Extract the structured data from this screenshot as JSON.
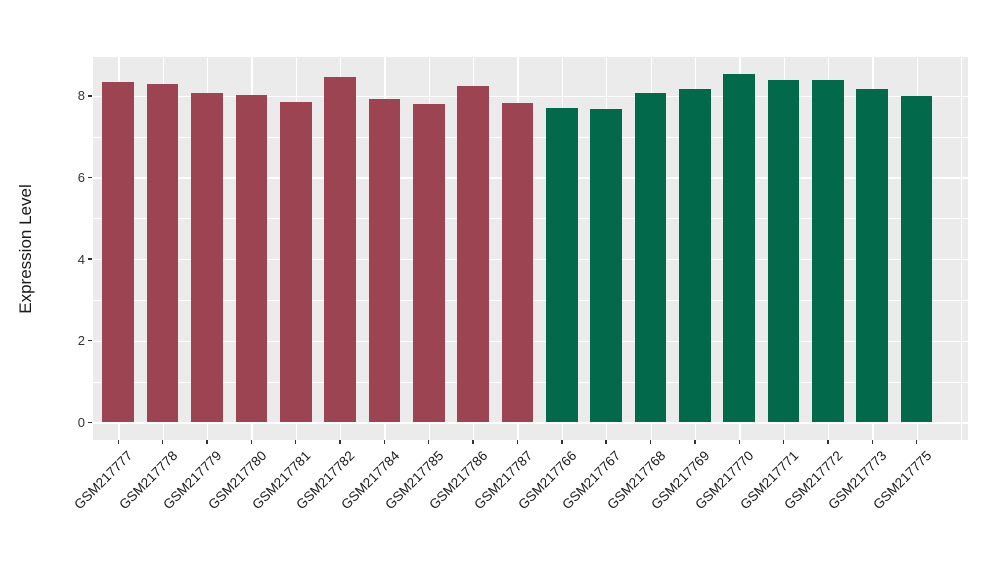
{
  "chart_data": {
    "type": "bar",
    "title": "",
    "xlabel": "",
    "ylabel": "Expression Level",
    "categories": [
      "GSM217777",
      "GSM217778",
      "GSM217779",
      "GSM217780",
      "GSM217781",
      "GSM217782",
      "GSM217784",
      "GSM217785",
      "GSM217786",
      "GSM217787",
      "GSM217766",
      "GSM217767",
      "GSM217768",
      "GSM217769",
      "GSM217770",
      "GSM217771",
      "GSM217772",
      "GSM217773",
      "GSM217775"
    ],
    "values": [
      8.35,
      8.28,
      8.08,
      8.02,
      7.84,
      8.47,
      7.92,
      7.8,
      8.24,
      7.82,
      7.7,
      7.67,
      8.07,
      8.16,
      8.53,
      8.38,
      8.4,
      8.16,
      8.01
    ],
    "group_of_bar": [
      0,
      0,
      0,
      0,
      0,
      0,
      0,
      0,
      0,
      0,
      1,
      1,
      1,
      1,
      1,
      1,
      1,
      1,
      1
    ],
    "group_colors": [
      "#9C4452",
      "#026A4B"
    ],
    "y_ticks": [
      0,
      2,
      4,
      6,
      8
    ],
    "y_minor_ticks": [
      1,
      3,
      5,
      7
    ],
    "ylim": [
      0,
      8.96
    ],
    "grid": true,
    "legend": "none",
    "colors": {
      "panel_background": "#EBEBEB",
      "gridline": "#FFFFFF",
      "tick_mark": "#333333",
      "tick_label": "#333333",
      "axis_title": "#1A1A1A"
    }
  }
}
